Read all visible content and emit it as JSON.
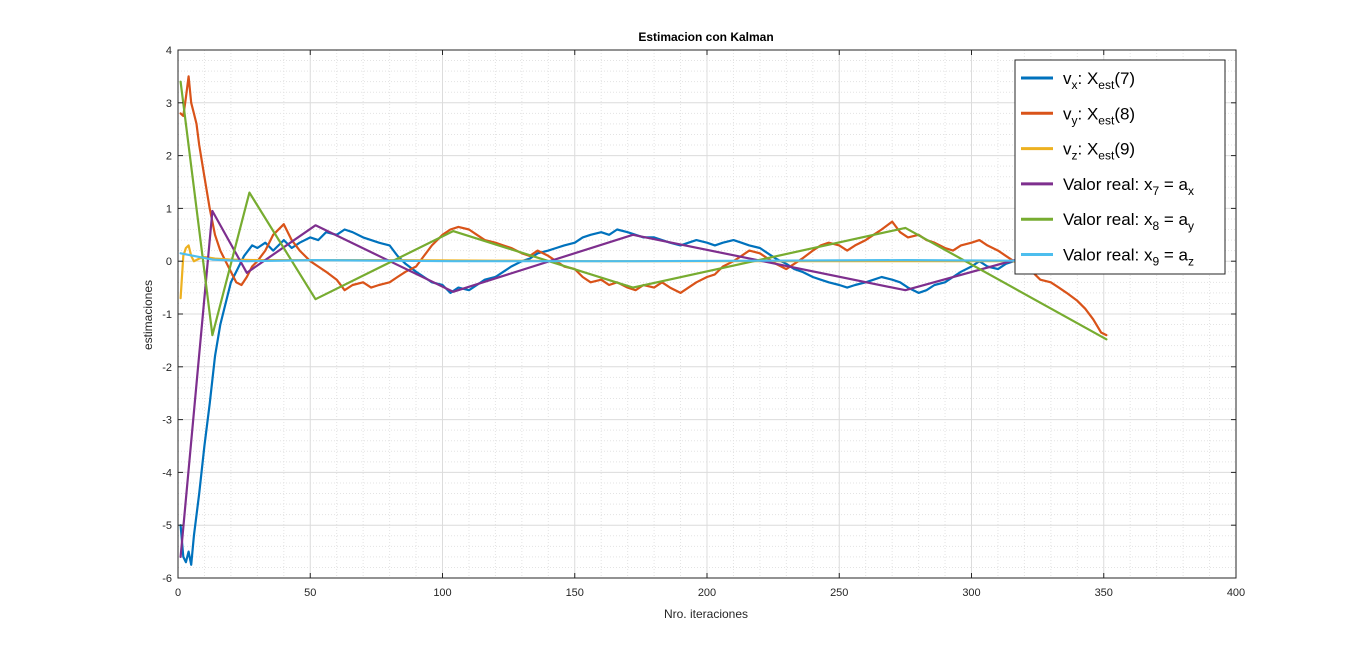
{
  "chart_data": {
    "type": "line",
    "title": "Estimacion con Kalman",
    "xlabel": "Nro. iteraciones",
    "ylabel": "estimaciones",
    "xlim": [
      0,
      400
    ],
    "ylim": [
      -6,
      4
    ],
    "xticks": [
      0,
      50,
      100,
      150,
      200,
      250,
      300,
      350,
      400
    ],
    "yticks": [
      -6,
      -5,
      -4,
      -3,
      -2,
      -1,
      0,
      1,
      2,
      3,
      4
    ],
    "grid": true,
    "minor_grid": true,
    "legend_position": "top-right",
    "series": [
      {
        "legend": [
          "v",
          "x",
          ": X",
          "est",
          "(7)"
        ],
        "color": "#0072BD",
        "x": [
          1,
          2,
          3,
          4,
          5,
          6,
          8,
          10,
          12,
          14,
          16,
          18,
          20,
          22,
          25,
          28,
          30,
          33,
          36,
          40,
          43,
          46,
          50,
          53,
          56,
          60,
          63,
          66,
          70,
          73,
          76,
          80,
          83,
          86,
          90,
          93,
          96,
          100,
          103,
          106,
          110,
          113,
          116,
          120,
          123,
          126,
          130,
          133,
          136,
          140,
          143,
          146,
          150,
          153,
          156,
          160,
          163,
          166,
          170,
          173,
          176,
          180,
          183,
          186,
          190,
          193,
          196,
          200,
          203,
          206,
          210,
          213,
          216,
          220,
          223,
          226,
          230,
          233,
          236,
          240,
          243,
          246,
          250,
          253,
          256,
          260,
          263,
          266,
          270,
          273,
          276,
          280,
          283,
          286,
          290,
          293,
          296,
          300,
          303,
          306,
          310,
          313,
          316,
          320
        ],
        "y": [
          -5.0,
          -5.6,
          -5.7,
          -5.5,
          -5.75,
          -5.2,
          -4.4,
          -3.5,
          -2.7,
          -1.8,
          -1.2,
          -0.8,
          -0.4,
          -0.2,
          0.1,
          0.3,
          0.25,
          0.35,
          0.2,
          0.4,
          0.25,
          0.35,
          0.45,
          0.4,
          0.55,
          0.5,
          0.6,
          0.55,
          0.45,
          0.4,
          0.35,
          0.3,
          0.1,
          -0.05,
          -0.2,
          -0.3,
          -0.4,
          -0.45,
          -0.6,
          -0.5,
          -0.55,
          -0.45,
          -0.35,
          -0.3,
          -0.2,
          -0.1,
          0.0,
          0.05,
          0.15,
          0.2,
          0.25,
          0.3,
          0.35,
          0.45,
          0.5,
          0.55,
          0.5,
          0.6,
          0.55,
          0.5,
          0.45,
          0.45,
          0.4,
          0.35,
          0.3,
          0.35,
          0.4,
          0.35,
          0.3,
          0.35,
          0.4,
          0.35,
          0.3,
          0.25,
          0.15,
          0.05,
          -0.05,
          -0.15,
          -0.2,
          -0.3,
          -0.35,
          -0.4,
          -0.45,
          -0.5,
          -0.45,
          -0.4,
          -0.35,
          -0.3,
          -0.35,
          -0.4,
          -0.5,
          -0.6,
          -0.55,
          -0.45,
          -0.4,
          -0.3,
          -0.2,
          -0.1,
          0.0,
          -0.1,
          -0.15,
          -0.05,
          0.0,
          0.05
        ]
      },
      {
        "legend": [
          "v",
          "y",
          ": X",
          "est",
          "(8)"
        ],
        "color": "#D95319",
        "x": [
          1,
          2,
          3,
          4,
          5,
          6,
          7,
          8,
          10,
          12,
          14,
          16,
          18,
          20,
          22,
          24,
          26,
          28,
          30,
          33,
          36,
          40,
          43,
          46,
          50,
          53,
          56,
          60,
          63,
          66,
          70,
          73,
          76,
          80,
          83,
          86,
          90,
          93,
          96,
          100,
          103,
          106,
          110,
          113,
          116,
          120,
          123,
          126,
          130,
          133,
          136,
          140,
          143,
          146,
          150,
          153,
          156,
          160,
          163,
          166,
          170,
          173,
          176,
          180,
          183,
          186,
          190,
          193,
          196,
          200,
          203,
          206,
          210,
          213,
          216,
          220,
          223,
          226,
          230,
          233,
          236,
          240,
          243,
          246,
          250,
          253,
          256,
          260,
          263,
          266,
          270,
          273,
          276,
          280,
          283,
          286,
          290,
          293,
          296,
          300,
          303,
          306,
          310,
          313,
          316,
          320,
          323,
          326,
          330,
          333,
          336,
          340,
          343,
          346,
          349,
          351
        ],
        "y": [
          2.8,
          2.75,
          3.1,
          3.5,
          3.0,
          2.8,
          2.6,
          2.2,
          1.6,
          1.0,
          0.5,
          0.2,
          0.0,
          -0.2,
          -0.4,
          -0.45,
          -0.3,
          -0.1,
          0.0,
          0.2,
          0.5,
          0.7,
          0.4,
          0.2,
          0.0,
          -0.1,
          -0.2,
          -0.35,
          -0.55,
          -0.45,
          -0.4,
          -0.5,
          -0.45,
          -0.4,
          -0.3,
          -0.2,
          -0.1,
          0.1,
          0.3,
          0.5,
          0.6,
          0.65,
          0.6,
          0.5,
          0.4,
          0.35,
          0.3,
          0.25,
          0.15,
          0.1,
          0.2,
          0.1,
          0.0,
          -0.1,
          -0.15,
          -0.3,
          -0.4,
          -0.35,
          -0.45,
          -0.4,
          -0.5,
          -0.55,
          -0.45,
          -0.5,
          -0.4,
          -0.5,
          -0.6,
          -0.5,
          -0.4,
          -0.3,
          -0.25,
          -0.1,
          0.0,
          0.1,
          0.2,
          0.15,
          0.05,
          -0.05,
          -0.15,
          -0.05,
          0.05,
          0.2,
          0.3,
          0.35,
          0.3,
          0.2,
          0.3,
          0.4,
          0.5,
          0.6,
          0.75,
          0.55,
          0.45,
          0.5,
          0.4,
          0.35,
          0.25,
          0.2,
          0.3,
          0.35,
          0.4,
          0.3,
          0.2,
          0.1,
          0.0,
          -0.1,
          -0.2,
          -0.35,
          -0.4,
          -0.5,
          -0.6,
          -0.75,
          -0.9,
          -1.1,
          -1.35,
          -1.4
        ]
      },
      {
        "legend": [
          "v",
          "z",
          ": X",
          "est",
          "(9)"
        ],
        "color": "#EDB120",
        "x": [
          1,
          2,
          3,
          4,
          5,
          6,
          8,
          10,
          14,
          20,
          30,
          50,
          80,
          120,
          160,
          200,
          240,
          280,
          320,
          351
        ],
        "y": [
          -0.7,
          0.1,
          0.25,
          0.3,
          0.1,
          0.0,
          0.05,
          0.08,
          0.05,
          0.03,
          0.02,
          0.02,
          0.02,
          0.01,
          0.0,
          0.0,
          0.0,
          0.0,
          0.0,
          0.0
        ]
      },
      {
        "legend": [
          "Valor real: x",
          "7",
          " = a",
          "x",
          ""
        ],
        "color": "#7E2F8E",
        "x": [
          1,
          13,
          26,
          52,
          104,
          172,
          275,
          351
        ],
        "y": [
          -5.6,
          0.95,
          -0.22,
          0.68,
          -0.58,
          0.5,
          -0.55,
          0.5
        ]
      },
      {
        "legend": [
          "Valor real: x",
          "8",
          " = a",
          "y",
          ""
        ],
        "color": "#77AC30",
        "x": [
          1,
          13,
          27,
          52,
          104,
          172,
          275,
          351
        ],
        "y": [
          3.4,
          -1.4,
          1.3,
          -0.72,
          0.57,
          -0.5,
          0.63,
          -1.48
        ]
      },
      {
        "legend": [
          "Valor real: x",
          "9",
          " = a",
          "z",
          ""
        ],
        "color": "#4DBEEE",
        "x": [
          1,
          13,
          26,
          52,
          104,
          172,
          275,
          351
        ],
        "y": [
          0.15,
          0.03,
          0.0,
          0.02,
          0.0,
          0.0,
          0.02,
          0.0
        ]
      }
    ]
  }
}
